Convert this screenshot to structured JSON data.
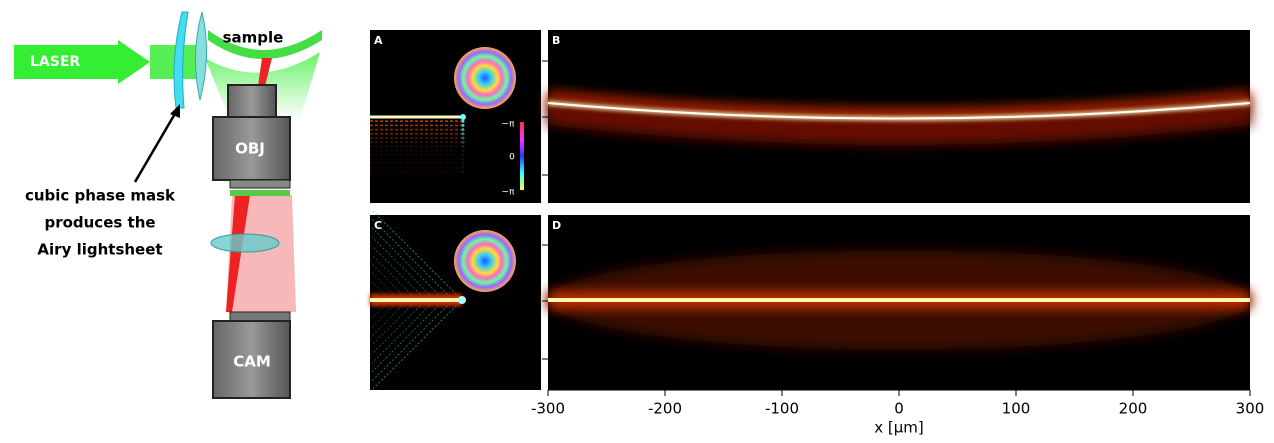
{
  "diagram": {
    "laser": "LASER",
    "sample": "sample",
    "objective": "OBJ",
    "camera": "CAM",
    "caption_lines": [
      "cubic phase mask",
      "produces the",
      "Airy lightsheet"
    ]
  },
  "panels": [
    {
      "letter": "A"
    },
    {
      "letter": "B"
    },
    {
      "letter": "C"
    },
    {
      "letter": "D"
    }
  ],
  "colorbar": {
    "labels": [
      "−π",
      "0",
      "−π"
    ]
  },
  "x_axis": {
    "label": "x [µm]",
    "xlim": [
      -300,
      300
    ],
    "xticks": [
      -300,
      -200,
      -100,
      0,
      100,
      200,
      300
    ]
  }
}
